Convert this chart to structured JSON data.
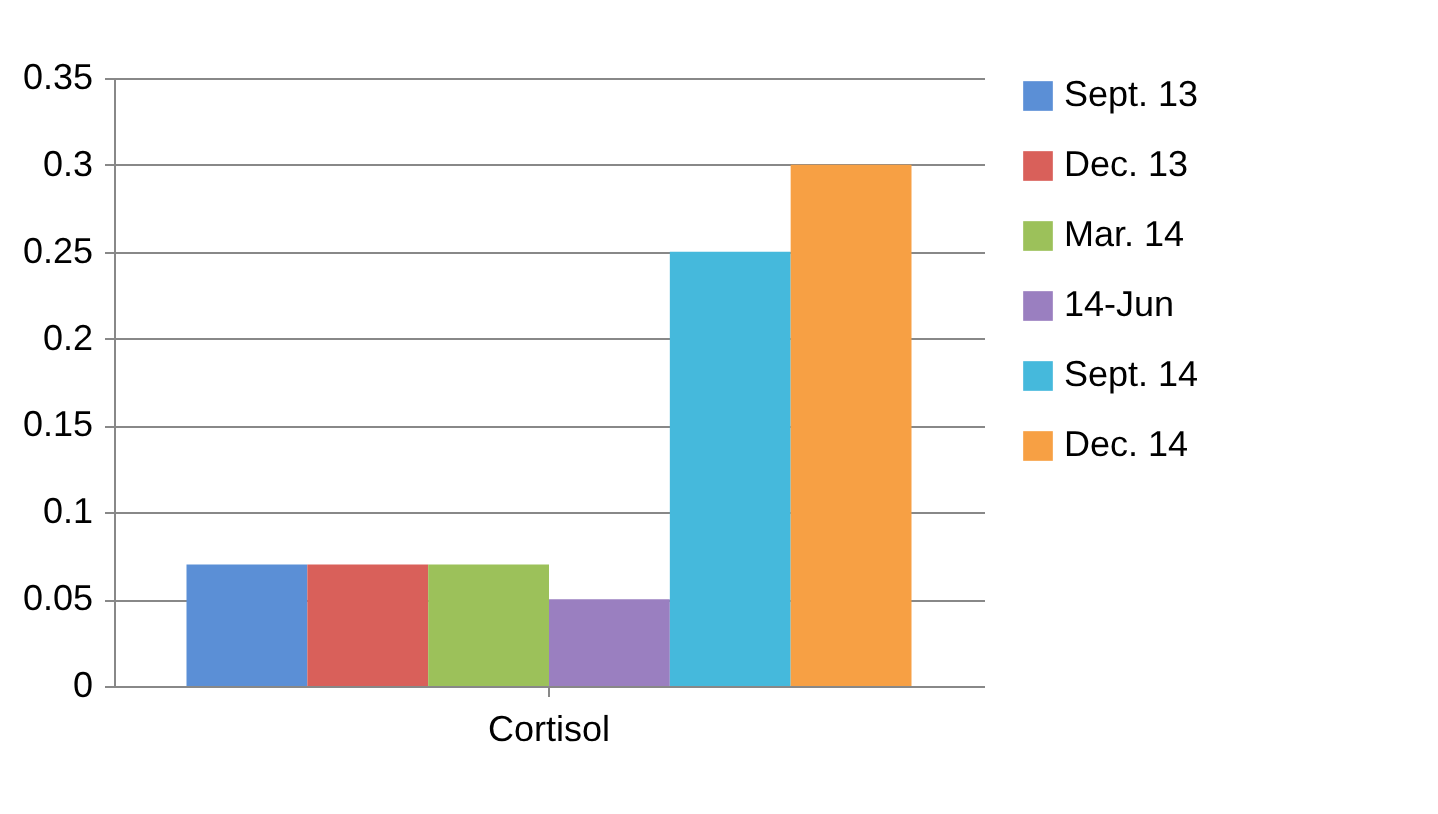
{
  "chart_data": {
    "type": "bar",
    "categories": [
      "Cortisol"
    ],
    "series": [
      {
        "name": "Sept. 13",
        "color": "#5b8fd6",
        "values": [
          0.07
        ]
      },
      {
        "name": "Dec. 13",
        "color": "#d9605a",
        "values": [
          0.07
        ]
      },
      {
        "name": "Mar. 14",
        "color": "#9cc15a",
        "values": [
          0.07
        ]
      },
      {
        "name": "14-Jun",
        "color": "#9a7fc0",
        "values": [
          0.05
        ]
      },
      {
        "name": "Sept. 14",
        "color": "#45b9dc",
        "values": [
          0.25
        ]
      },
      {
        "name": "Dec. 14",
        "color": "#f7a044",
        "values": [
          0.3
        ]
      }
    ],
    "ylim": [
      0,
      0.35
    ],
    "yticks": [
      0,
      0.05,
      0.1,
      0.15,
      0.2,
      0.25,
      0.3,
      0.35
    ],
    "grid": "y",
    "legend": "right"
  }
}
